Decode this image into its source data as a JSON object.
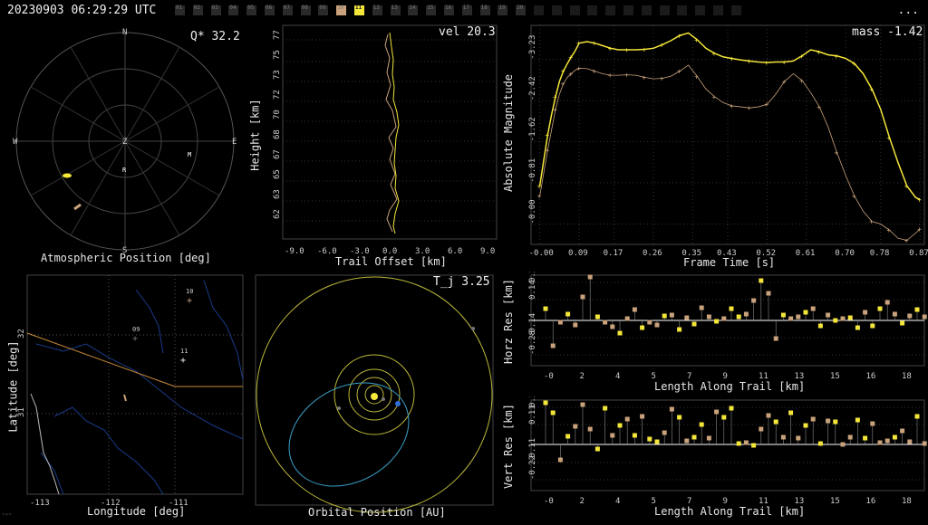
{
  "header": {
    "timestamp": "20230903 06:29:29 UTC",
    "menu_label": "...",
    "camera_count": 32,
    "camera_numbers": [
      "01",
      "02",
      "03",
      "04",
      "05",
      "06",
      "07",
      "08",
      "09",
      "10",
      "11",
      "12",
      "13",
      "14",
      "15",
      "16",
      "17",
      "18",
      "19",
      "20"
    ],
    "highlighted_camera": "10",
    "selected_camera": "11"
  },
  "sky": {
    "title": "Atmospheric Position [deg]",
    "q_label": "Q* 32.2",
    "north": "N",
    "south": "S",
    "east": "E",
    "west": "W",
    "zenith": "Z",
    "radiant_marker": "R",
    "m_marker": "M"
  },
  "height": {
    "title": "Trail Offset [km]",
    "ylabel": "Height [km]",
    "vel_label": "vel 20.3",
    "x_ticks": [
      "-9.0",
      "-6.0",
      "-3.0",
      "0.0",
      "3.0",
      "6.0",
      "9.0"
    ],
    "y_ticks": [
      "77",
      "75",
      "73",
      "72",
      "70",
      "68",
      "67",
      "65",
      "63",
      "62"
    ]
  },
  "mag": {
    "title": "Frame Time [s]",
    "ylabel": "Absolute Magnitude",
    "mass_label": "mass -1.42",
    "x_ticks": [
      "-0.00",
      "0.09",
      "0.17",
      "0.26",
      "0.35",
      "0.43",
      "0.52",
      "0.61",
      "0.70",
      "0.78",
      "0.87"
    ],
    "y_ticks": [
      "-3.23",
      "-2.42",
      "-1.62",
      "-0.81",
      "-0.00"
    ],
    "x": [
      0.0,
      0.009,
      0.018,
      0.027,
      0.036,
      0.045,
      0.054,
      0.063,
      0.072,
      0.081,
      0.09,
      0.108,
      0.126,
      0.144,
      0.162,
      0.18,
      0.2,
      0.22,
      0.24,
      0.26,
      0.28,
      0.3,
      0.32,
      0.34,
      0.36,
      0.38,
      0.4,
      0.42,
      0.44,
      0.46,
      0.48,
      0.5,
      0.52,
      0.54,
      0.56,
      0.58,
      0.6,
      0.62,
      0.64,
      0.66,
      0.68,
      0.7,
      0.72,
      0.74,
      0.76,
      0.78,
      0.8,
      0.82,
      0.84,
      0.86,
      0.87
    ],
    "series": [
      {
        "color": "#f5e63a",
        "values": [
          -0.75,
          -1.25,
          -1.75,
          -2.15,
          -2.5,
          -2.8,
          -3.0,
          -3.15,
          -3.28,
          -3.4,
          -3.55,
          -3.58,
          -3.55,
          -3.5,
          -3.45,
          -3.42,
          -3.42,
          -3.42,
          -3.43,
          -3.45,
          -3.52,
          -3.6,
          -3.7,
          -3.75,
          -3.62,
          -3.45,
          -3.35,
          -3.28,
          -3.25,
          -3.22,
          -3.2,
          -3.18,
          -3.17,
          -3.18,
          -3.18,
          -3.2,
          -3.3,
          -3.42,
          -3.38,
          -3.32,
          -3.3,
          -3.25,
          -3.15,
          -2.95,
          -2.65,
          -2.25,
          -1.7,
          -1.2,
          -0.75,
          -0.52,
          -0.48
        ]
      },
      {
        "color": "#c9a27b",
        "values": [
          -0.55,
          -1.0,
          -1.45,
          -1.85,
          -2.25,
          -2.55,
          -2.75,
          -2.88,
          -2.95,
          -3.02,
          -3.06,
          -3.05,
          -3.0,
          -2.95,
          -2.92,
          -2.92,
          -2.93,
          -2.92,
          -2.88,
          -2.85,
          -2.86,
          -2.9,
          -3.0,
          -3.12,
          -2.9,
          -2.65,
          -2.5,
          -2.38,
          -2.32,
          -2.3,
          -2.28,
          -2.3,
          -2.35,
          -2.55,
          -2.8,
          -2.95,
          -2.82,
          -2.58,
          -2.3,
          -1.9,
          -1.4,
          -0.95,
          -0.55,
          -0.25,
          -0.05,
          0.0,
          0.12,
          0.28,
          0.32,
          0.18,
          0.1
        ]
      }
    ]
  },
  "map": {
    "xlabel": "Longitude [deg]",
    "ylabel": "Latitude [deg]",
    "x_ticks": [
      "-113",
      "-112",
      "-111"
    ],
    "y_ticks": [
      "32",
      "31"
    ],
    "stations": [
      {
        "label": "10"
      },
      {
        "label": "09"
      },
      {
        "label": "11"
      }
    ]
  },
  "orbit": {
    "title": "Orbital Position [AU]",
    "tj_label": "T_j 3.25"
  },
  "horz": {
    "xlabel": "Length Along Trail [km]",
    "ylabel": "Horz Res [km]",
    "x_ticks": [
      "-0",
      "2",
      "4",
      "5",
      "7",
      "9",
      "11",
      "13",
      "15",
      "16",
      "18"
    ],
    "y_ticks": [
      "0.28",
      "0.14",
      "-0.14",
      "-0.28"
    ]
  },
  "vert": {
    "xlabel": "Length Along Trail [km]",
    "ylabel": "Vert Res [km]",
    "x_ticks": [
      "-0",
      "2",
      "4",
      "5",
      "7",
      "9",
      "11",
      "13",
      "15",
      "16",
      "18"
    ],
    "y_ticks": [
      "0.22",
      "0.11",
      "-0.11",
      "-0.22"
    ]
  },
  "corner_mark": "ᵒᵍᵒ"
}
